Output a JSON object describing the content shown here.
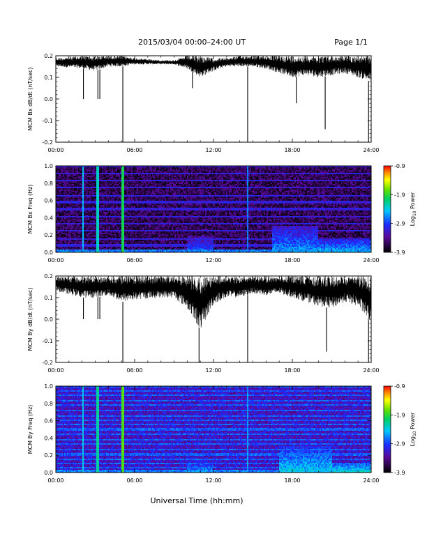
{
  "header": {
    "title": "2015/03/04  00:00–24:00 UT",
    "page": "Page 1/1"
  },
  "footer": {
    "xlabel": "Universal Time (hh:mm)"
  },
  "chart_data": [
    {
      "type": "line",
      "ylabel": "MCM Bx dB/dt (nT/sec)",
      "xlim": [
        0,
        24
      ],
      "ylim": [
        -0.2,
        0.2
      ],
      "x_ticks": [
        "00:00",
        "06:00",
        "12:00",
        "18:00",
        "24:00"
      ],
      "y_ticks": [
        "0.2",
        "0.1",
        "0.0",
        "-0.1",
        "-0.2"
      ],
      "envelope": {
        "x": [
          0,
          2,
          3,
          4,
          5,
          6,
          8,
          9,
          10,
          11,
          12,
          13,
          14,
          15,
          16,
          17,
          18,
          19,
          20,
          21,
          22,
          23,
          24
        ],
        "upper": [
          0.19,
          0.2,
          0.2,
          0.2,
          0.2,
          0.19,
          0.18,
          0.18,
          0.2,
          0.2,
          0.19,
          0.19,
          0.2,
          0.2,
          0.2,
          0.2,
          0.2,
          0.2,
          0.2,
          0.2,
          0.2,
          0.2,
          0.2
        ],
        "lower": [
          0.15,
          0.14,
          0.13,
          0.15,
          0.15,
          0.16,
          0.16,
          0.16,
          0.14,
          0.1,
          0.13,
          0.15,
          0.15,
          0.15,
          0.14,
          0.12,
          0.1,
          0.11,
          0.1,
          0.11,
          0.12,
          0.1,
          0.08
        ]
      },
      "spikes": [
        {
          "x": 2.1,
          "y": 0.0
        },
        {
          "x": 3.2,
          "y": 0.0
        },
        {
          "x": 3.35,
          "y": 0.0
        },
        {
          "x": 5.1,
          "y": -0.2
        },
        {
          "x": 10.4,
          "y": 0.05
        },
        {
          "x": 14.6,
          "y": -0.2
        },
        {
          "x": 18.3,
          "y": -0.02
        },
        {
          "x": 20.5,
          "y": -0.14
        },
        {
          "x": 23.8,
          "y": -0.2
        }
      ]
    },
    {
      "type": "heatmap",
      "ylabel": "MCM Bx Freq (Hz)",
      "xlim": [
        0,
        24
      ],
      "ylim": [
        0,
        1.0
      ],
      "x_ticks": [
        "00:00",
        "06:00",
        "12:00",
        "18:00",
        "24:00"
      ],
      "y_ticks": [
        "1.0",
        "0.8",
        "0.6",
        "0.4",
        "0.2",
        "0.0"
      ],
      "colorbar": {
        "label": "Log10 Power",
        "ticks": [
          "-0.9",
          "-1.9",
          "-2.9",
          "-3.9"
        ],
        "range": [
          -3.9,
          -0.9
        ]
      },
      "base_level": -3.6,
      "harmonic_level": -3.1,
      "harmonic_freqs": [
        0.08,
        0.16,
        0.25,
        0.33,
        0.41,
        0.5,
        0.58,
        0.66,
        0.75,
        0.83,
        0.91,
        0.99
      ],
      "vertical_lines": [
        {
          "x": 2.1,
          "level": -2.5
        },
        {
          "x": 3.2,
          "level": -2.3
        },
        {
          "x": 5.1,
          "level": -2.0
        },
        {
          "x": 14.6,
          "level": -2.7
        }
      ],
      "activity": [
        {
          "t0": 10,
          "t1": 12,
          "fmax": 0.2,
          "level": -2.8
        },
        {
          "t0": 16.5,
          "t1": 20,
          "fmax": 0.3,
          "level": -2.6
        },
        {
          "t0": 20,
          "t1": 24,
          "fmax": 0.15,
          "level": -2.5
        }
      ]
    },
    {
      "type": "line",
      "ylabel": "MCM By dB/dt (nT/sec)",
      "xlim": [
        0,
        24
      ],
      "ylim": [
        -0.2,
        0.2
      ],
      "x_ticks": [
        "00:00",
        "06:00",
        "12:00",
        "18:00",
        "24:00"
      ],
      "y_ticks": [
        "0.2",
        "0.1",
        "0.0",
        "-0.1",
        "-0.2"
      ],
      "envelope": {
        "x": [
          0,
          2,
          3,
          4,
          5,
          6,
          8,
          9,
          10,
          11,
          12,
          13,
          14,
          15,
          16,
          17,
          18,
          19,
          20,
          21,
          22,
          23,
          24
        ],
        "upper": [
          0.2,
          0.2,
          0.2,
          0.2,
          0.2,
          0.2,
          0.2,
          0.2,
          0.2,
          0.2,
          0.2,
          0.2,
          0.2,
          0.2,
          0.2,
          0.2,
          0.2,
          0.2,
          0.2,
          0.2,
          0.2,
          0.2,
          0.2
        ],
        "lower": [
          0.13,
          0.1,
          0.1,
          0.11,
          0.08,
          0.09,
          0.1,
          0.1,
          0.05,
          -0.05,
          0.07,
          0.1,
          0.1,
          0.12,
          0.11,
          0.12,
          0.1,
          0.08,
          0.06,
          0.05,
          0.08,
          0.06,
          -0.02
        ]
      },
      "spikes": [
        {
          "x": 2.1,
          "y": 0.0
        },
        {
          "x": 3.2,
          "y": 0.0
        },
        {
          "x": 3.35,
          "y": 0.0
        },
        {
          "x": 5.1,
          "y": -0.2
        },
        {
          "x": 10.9,
          "y": -0.2
        },
        {
          "x": 14.6,
          "y": -0.2
        },
        {
          "x": 20.6,
          "y": -0.15
        },
        {
          "x": 23.8,
          "y": -0.2
        }
      ]
    },
    {
      "type": "heatmap",
      "ylabel": "MCM By Freq (Hz)",
      "xlim": [
        0,
        24
      ],
      "ylim": [
        0,
        1.0
      ],
      "x_ticks": [
        "00:00",
        "06:00",
        "12:00",
        "18:00",
        "24:00"
      ],
      "y_ticks": [
        "1.0",
        "0.8",
        "0.6",
        "0.4",
        "0.2",
        "0.0"
      ],
      "colorbar": {
        "label": "Log10 Power",
        "ticks": [
          "-0.9",
          "-1.9",
          "-2.9",
          "-3.9"
        ],
        "range": [
          -3.9,
          -0.9
        ]
      },
      "base_level": -3.2,
      "harmonic_level": -2.8,
      "harmonic_freqs": [
        0.05,
        0.1,
        0.16,
        0.21,
        0.27,
        0.33,
        0.38,
        0.44,
        0.5,
        0.55,
        0.61,
        0.66,
        0.72,
        0.78,
        0.83,
        0.89,
        0.95,
        0.99
      ],
      "vertical_lines": [
        {
          "x": 2.1,
          "level": -2.4
        },
        {
          "x": 3.2,
          "level": -2.2
        },
        {
          "x": 5.1,
          "level": -1.8
        },
        {
          "x": 14.6,
          "level": -2.6
        }
      ],
      "activity": [
        {
          "t0": 10,
          "t1": 12,
          "fmax": 0.15,
          "level": -2.6
        },
        {
          "t0": 17,
          "t1": 21,
          "fmax": 0.3,
          "level": -2.4
        },
        {
          "t0": 21,
          "t1": 24,
          "fmax": 0.12,
          "level": -2.3
        }
      ]
    }
  ]
}
